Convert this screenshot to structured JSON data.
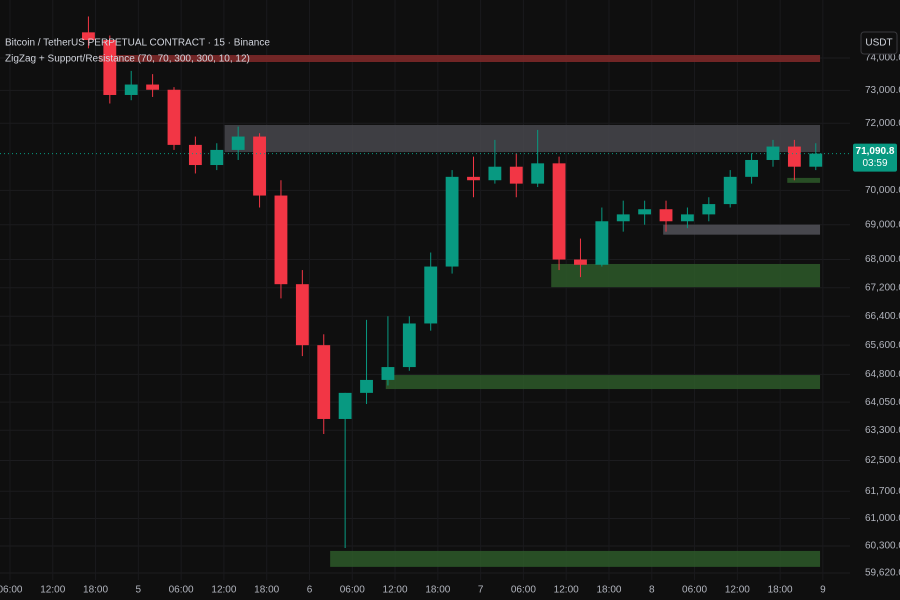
{
  "chart_data": {
    "type": "candlestick",
    "title": "Bitcoin / TetherUS PERPETUAL CONTRACT · 15 · Binance",
    "indicator": "ZigZag + Support/Resistance (70, 70, 300, 300, 10, 12)",
    "currency": "USDT",
    "log_scale": true,
    "grid": true,
    "up_color": "#089981",
    "down_color": "#f23645",
    "xlim": [
      -1.4,
      117.8
    ],
    "ylim": [
      59445,
      75822
    ],
    "xticks": [
      {
        "value": 0,
        "label": "06:00"
      },
      {
        "value": 6,
        "label": "12:00"
      },
      {
        "value": 12,
        "label": "18:00"
      },
      {
        "value": 18,
        "label": "5"
      },
      {
        "value": 24,
        "label": "06:00"
      },
      {
        "value": 30,
        "label": "12:00"
      },
      {
        "value": 36,
        "label": "18:00"
      },
      {
        "value": 42,
        "label": "6"
      },
      {
        "value": 48,
        "label": "06:00"
      },
      {
        "value": 54,
        "label": "12:00"
      },
      {
        "value": 60,
        "label": "18:00"
      },
      {
        "value": 66,
        "label": "7"
      },
      {
        "value": 72,
        "label": "06:00"
      },
      {
        "value": 78,
        "label": "12:00"
      },
      {
        "value": 84,
        "label": "18:00"
      },
      {
        "value": 90,
        "label": "8"
      },
      {
        "value": 96,
        "label": "06:00"
      },
      {
        "value": 102,
        "label": "12:00"
      },
      {
        "value": 108,
        "label": "18:00"
      },
      {
        "value": 114,
        "label": "9"
      }
    ],
    "yticks": [
      {
        "value": 74000,
        "label": "74,000.0"
      },
      {
        "value": 73000,
        "label": "73,000.0"
      },
      {
        "value": 72000,
        "label": "72,000.0"
      },
      {
        "value": 70000,
        "label": "70,000.0"
      },
      {
        "value": 69000,
        "label": "69,000.0"
      },
      {
        "value": 68000,
        "label": "68,000.0"
      },
      {
        "value": 67200,
        "label": "67,200.0"
      },
      {
        "value": 66400,
        "label": "66,400.0"
      },
      {
        "value": 65600,
        "label": "65,600.0"
      },
      {
        "value": 64800,
        "label": "64,800.0"
      },
      {
        "value": 64050,
        "label": "64,050.0"
      },
      {
        "value": 63300,
        "label": "63,300.0"
      },
      {
        "value": 62500,
        "label": "62,500.0"
      },
      {
        "value": 61700,
        "label": "61,700.0"
      },
      {
        "value": 61000,
        "label": "61,000.0"
      },
      {
        "value": 60300,
        "label": "60,300.0"
      },
      {
        "value": 59620,
        "label": "59,620.0"
      }
    ],
    "x": [
      11,
      14,
      17,
      20,
      23,
      26,
      29,
      32,
      35,
      38,
      41,
      44,
      47,
      50,
      53,
      56,
      59,
      62,
      65,
      68,
      71,
      74,
      77,
      80,
      83,
      86,
      89,
      92,
      95,
      98,
      101,
      104,
      107,
      110,
      113
    ],
    "open": [
      74800,
      74560,
      72860,
      73180,
      73020,
      71350,
      70750,
      71200,
      71600,
      69850,
      67300,
      65600,
      63600,
      64300,
      64650,
      65000,
      66200,
      67800,
      70400,
      70300,
      70700,
      70200,
      70800,
      68000,
      67850,
      69100,
      69300,
      69450,
      69100,
      69300,
      69600,
      70400,
      70900,
      71300,
      70700
    ],
    "high": [
      75300,
      74700,
      73600,
      73500,
      73100,
      71600,
      71400,
      71900,
      71700,
      70300,
      67700,
      65900,
      64300,
      66300,
      66400,
      66400,
      68200,
      70600,
      71000,
      71500,
      71100,
      71800,
      71000,
      68600,
      69500,
      69700,
      69700,
      69700,
      69500,
      69800,
      70600,
      71100,
      71500,
      71500,
      71400
    ],
    "low": [
      74300,
      72600,
      72700,
      72800,
      71200,
      70500,
      70600,
      70900,
      69500,
      66900,
      65300,
      63200,
      60250,
      64000,
      64500,
      64900,
      66000,
      67600,
      69800,
      70200,
      69800,
      70100,
      67700,
      67500,
      67800,
      68800,
      69000,
      68800,
      68900,
      69100,
      69500,
      70200,
      70700,
      70300,
      70600
    ],
    "close": [
      74560,
      72860,
      73180,
      73020,
      71350,
      70750,
      71200,
      71600,
      69850,
      67300,
      65600,
      63600,
      64300,
      64650,
      65000,
      66200,
      67800,
      70400,
      70300,
      70700,
      70200,
      70800,
      68000,
      67850,
      69100,
      69300,
      69450,
      69100,
      69300,
      69600,
      70400,
      70900,
      71300,
      70700,
      71090.8
    ],
    "zones": [
      {
        "color": "#8a2a2a",
        "x": [
          12.5,
          113.6
        ],
        "values": [
          73875,
          74093
        ]
      },
      {
        "color": "#4a4a50",
        "x": [
          30.1,
          113.6
        ],
        "values": [
          71137,
          71949
        ]
      },
      {
        "color": "#2e5e2a",
        "x": [
          109,
          113.6
        ],
        "values": [
          70223,
          70369
        ]
      },
      {
        "color": "#55555c",
        "x": [
          91.6,
          113.6
        ],
        "values": [
          68713,
          69002
        ]
      },
      {
        "color": "#2e5e2a",
        "x": [
          75.9,
          113.6
        ],
        "values": [
          67216,
          67873
        ]
      },
      {
        "color": "#2e5e2a",
        "x": [
          52.7,
          113.6
        ],
        "values": [
          64403,
          64783
        ]
      },
      {
        "color": "#2e5e2a",
        "x": [
          44.9,
          113.6
        ],
        "values": [
          59773,
          60175
        ]
      }
    ],
    "last_price": {
      "value": 71090.8,
      "label": "71,090.8"
    },
    "countdown": "03:59"
  }
}
